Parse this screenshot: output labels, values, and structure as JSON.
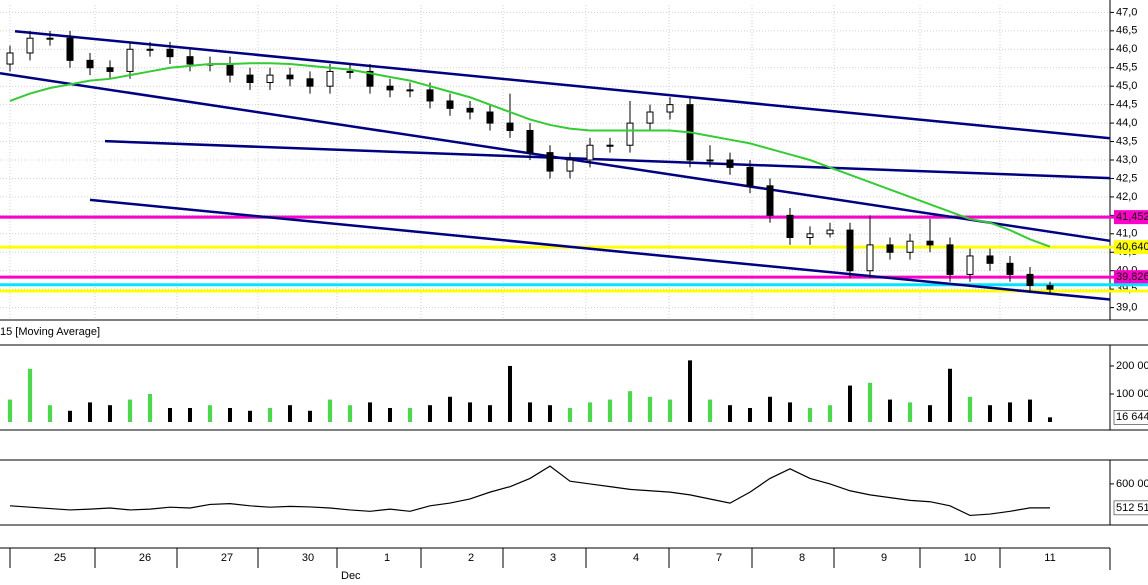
{
  "chart_data": [
    {
      "type": "candlestick",
      "xlim": [
        -0.5,
        55
      ],
      "ylim": [
        38.8,
        47.2
      ],
      "grid": true,
      "yticks": [
        {
          "value": 39.0,
          "label": "39,0"
        },
        {
          "value": 39.5,
          "label": "39,5"
        },
        {
          "value": 40.0,
          "label": "40,0"
        },
        {
          "value": 40.5,
          "label": "40,5"
        },
        {
          "value": 41.0,
          "label": "41,0"
        },
        {
          "value": 41.5,
          "label": "41,5"
        },
        {
          "value": 42.0,
          "label": "42,0"
        },
        {
          "value": 42.5,
          "label": "42,5"
        },
        {
          "value": 43.0,
          "label": "43,0"
        },
        {
          "value": 43.5,
          "label": "43,5"
        },
        {
          "value": 44.0,
          "label": "44,0"
        },
        {
          "value": 44.5,
          "label": "44,5"
        },
        {
          "value": 45.0,
          "label": "45,0"
        },
        {
          "value": 45.5,
          "label": "45,5"
        },
        {
          "value": 46.0,
          "label": "46,0"
        },
        {
          "value": 46.5,
          "label": "46,5"
        },
        {
          "value": 47.0,
          "label": "47,0"
        }
      ],
      "xticks": [
        {
          "value": 2.5,
          "label": "25"
        },
        {
          "value": 6.75,
          "label": "26"
        },
        {
          "value": 10.85,
          "label": "27"
        },
        {
          "value": 14.9,
          "label": "30"
        },
        {
          "value": 18.85,
          "label": "1"
        },
        {
          "value": 23.05,
          "label": "2"
        },
        {
          "value": 27.15,
          "label": "3"
        },
        {
          "value": 31.3,
          "label": "4"
        },
        {
          "value": 35.45,
          "label": "7"
        },
        {
          "value": 39.6,
          "label": "8"
        },
        {
          "value": 43.7,
          "label": "9"
        },
        {
          "value": 48,
          "label": "10"
        },
        {
          "value": 52,
          "label": "11"
        }
      ],
      "month": "Dec",
      "up_color": "#ffffff",
      "down_color": "#000000",
      "candles": [
        [
          45.6,
          46.1,
          45.4,
          45.9
        ],
        [
          45.9,
          46.5,
          45.7,
          46.3
        ],
        [
          46.3,
          46.5,
          46.1,
          46.3
        ],
        [
          46.3,
          46.5,
          45.5,
          45.7
        ],
        [
          45.7,
          45.9,
          45.3,
          45.5
        ],
        [
          45.5,
          45.7,
          45.2,
          45.4
        ],
        [
          45.4,
          46.2,
          45.2,
          46.0
        ],
        [
          46.0,
          46.2,
          45.8,
          46.0
        ],
        [
          46.0,
          46.2,
          45.6,
          45.8
        ],
        [
          45.8,
          46.0,
          45.4,
          45.6
        ],
        [
          45.6,
          45.8,
          45.4,
          45.6
        ],
        [
          45.6,
          45.8,
          45.1,
          45.3
        ],
        [
          45.3,
          45.5,
          44.9,
          45.1
        ],
        [
          45.1,
          45.5,
          44.9,
          45.3
        ],
        [
          45.3,
          45.5,
          45.0,
          45.2
        ],
        [
          45.2,
          45.4,
          44.8,
          45.0
        ],
        [
          45.0,
          45.6,
          44.8,
          45.4
        ],
        [
          45.4,
          45.6,
          45.2,
          45.4
        ],
        [
          45.4,
          45.6,
          44.8,
          45.0
        ],
        [
          45.0,
          45.2,
          44.7,
          44.9
        ],
        [
          44.9,
          45.1,
          44.7,
          44.9
        ],
        [
          44.9,
          45.1,
          44.4,
          44.6
        ],
        [
          44.6,
          44.8,
          44.2,
          44.4
        ],
        [
          44.4,
          44.6,
          44.1,
          44.3
        ],
        [
          44.3,
          44.5,
          43.8,
          44.0
        ],
        [
          44.0,
          44.8,
          43.6,
          43.8
        ],
        [
          43.8,
          44.0,
          43.0,
          43.2
        ],
        [
          43.2,
          43.4,
          42.5,
          42.7
        ],
        [
          42.7,
          43.2,
          42.5,
          43.0
        ],
        [
          43.0,
          43.6,
          42.8,
          43.4
        ],
        [
          43.4,
          43.6,
          43.2,
          43.4
        ],
        [
          43.4,
          44.6,
          43.2,
          44.0
        ],
        [
          44.0,
          44.5,
          43.8,
          44.3
        ],
        [
          44.3,
          44.7,
          44.1,
          44.5
        ],
        [
          44.5,
          44.7,
          42.8,
          43.0
        ],
        [
          43.0,
          43.4,
          42.8,
          43.0
        ],
        [
          43.0,
          43.2,
          42.6,
          42.8
        ],
        [
          42.8,
          43.0,
          42.1,
          42.3
        ],
        [
          42.3,
          42.5,
          41.3,
          41.5
        ],
        [
          41.5,
          41.7,
          40.7,
          40.9
        ],
        [
          40.9,
          41.2,
          40.7,
          41.0
        ],
        [
          41.0,
          41.3,
          40.9,
          41.1
        ],
        [
          41.1,
          41.3,
          39.8,
          40.0
        ],
        [
          40.0,
          41.5,
          39.8,
          40.7
        ],
        [
          40.7,
          40.9,
          40.3,
          40.5
        ],
        [
          40.5,
          41.0,
          40.3,
          40.8
        ],
        [
          40.8,
          41.4,
          40.5,
          40.7
        ],
        [
          40.7,
          40.9,
          39.7,
          39.9
        ],
        [
          39.9,
          40.6,
          39.7,
          40.4
        ],
        [
          40.4,
          40.6,
          40.0,
          40.2
        ],
        [
          40.2,
          40.4,
          39.7,
          39.9
        ],
        [
          39.9,
          40.1,
          39.4,
          39.6
        ],
        [
          39.6,
          39.7,
          39.4,
          39.5
        ]
      ],
      "moving_average": {
        "color": "#33cc33",
        "values": [
          44.6,
          44.8,
          44.95,
          45.05,
          45.15,
          45.2,
          45.3,
          45.4,
          45.5,
          45.55,
          45.6,
          45.6,
          45.62,
          45.62,
          45.6,
          45.55,
          45.5,
          45.45,
          45.35,
          45.25,
          45.15,
          45.0,
          44.85,
          44.7,
          44.5,
          44.3,
          44.1,
          43.95,
          43.85,
          43.8,
          43.8,
          43.8,
          43.8,
          43.8,
          43.75,
          43.65,
          43.55,
          43.45,
          43.3,
          43.15,
          43.0,
          42.8,
          42.6,
          42.4,
          42.2,
          42.0,
          41.8,
          41.6,
          41.4,
          41.3,
          41.1,
          40.85,
          40.65
        ]
      },
      "trendline_color": "#000080",
      "trendlines": [
        {
          "x": [
            0.25,
            55
          ],
          "y": [
            46.49,
            43.59
          ]
        },
        {
          "x": [
            -0.5,
            55
          ],
          "y": [
            45.35,
            40.81
          ]
        },
        {
          "x": [
            4.75,
            55
          ],
          "y": [
            43.51,
            42.51
          ]
        },
        {
          "x": [
            4,
            55
          ],
          "y": [
            41.92,
            39.22
          ]
        }
      ],
      "levels": [
        {
          "value": 41.452,
          "color": "#00e5ff"
        },
        {
          "value": 41.452,
          "color": "#ff00cc",
          "label": "41,452"
        },
        {
          "value": 40.64,
          "color": "#ffff00",
          "label": "40,640"
        },
        {
          "value": 39.826,
          "color": "#ff00cc",
          "label": "39,826"
        },
        {
          "value": 39.62,
          "color": "#00e5ff"
        },
        {
          "value": 39.45,
          "color": "#ffff00"
        }
      ]
    },
    {
      "type": "bar",
      "title": "15 [Moving Average]",
      "xlim": [
        -0.5,
        55
      ],
      "ylim": [
        0,
        257000
      ],
      "yticks": [
        {
          "value": 100000,
          "label": "100 00"
        },
        {
          "value": 200000,
          "label": "200 00"
        }
      ],
      "up_color": "#44dd44",
      "down_color": "#000000",
      "values": [
        80000,
        190000,
        60000,
        40000,
        70000,
        60000,
        80000,
        100000,
        50000,
        50000,
        60000,
        50000,
        40000,
        50000,
        60000,
        40000,
        80000,
        60000,
        70000,
        50000,
        50000,
        60000,
        90000,
        70000,
        60000,
        200000,
        70000,
        60000,
        50000,
        70000,
        80000,
        110000,
        90000,
        80000,
        220000,
        80000,
        60000,
        50000,
        90000,
        70000,
        50000,
        60000,
        130000,
        140000,
        80000,
        70000,
        60000,
        190000,
        90000,
        60000,
        70000,
        80000,
        16644
      ],
      "last_value_label": "16 644"
    },
    {
      "type": "line",
      "xlim": [
        -0.5,
        55
      ],
      "ylim": [
        461000,
        669000
      ],
      "yticks": [
        {
          "value": 600000,
          "label": "600 00"
        }
      ],
      "color": "#000000",
      "values": [
        520000,
        515000,
        510000,
        505000,
        508000,
        512000,
        505000,
        508000,
        515000,
        512000,
        525000,
        528000,
        520000,
        515000,
        518000,
        516000,
        512000,
        505000,
        500000,
        508000,
        500000,
        520000,
        530000,
        545000,
        570000,
        590000,
        620000,
        665000,
        610000,
        600000,
        590000,
        580000,
        575000,
        570000,
        560000,
        545000,
        530000,
        570000,
        620000,
        655000,
        620000,
        600000,
        575000,
        560000,
        550000,
        540000,
        535000,
        520000,
        485000,
        490000,
        500000,
        512510,
        512510
      ],
      "last_value_label": "512 51"
    }
  ]
}
